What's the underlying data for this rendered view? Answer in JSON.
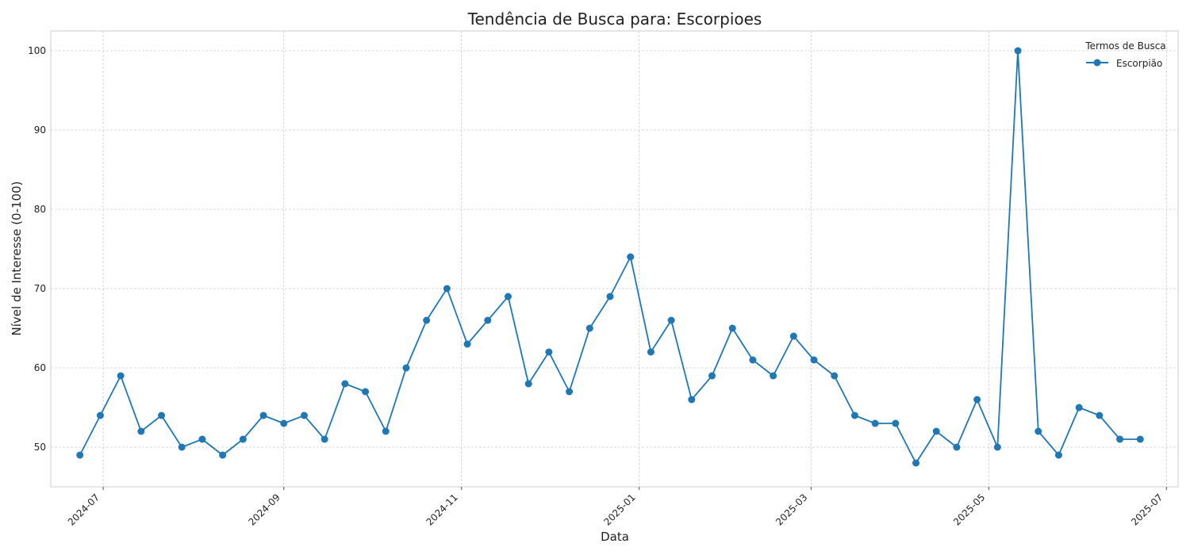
{
  "chart_data": {
    "type": "line",
    "title": "Tendência de Busca para: Escorpioes",
    "xlabel": "Data",
    "ylabel": "Nível de Interesse (0-100)",
    "x_ticks": [
      "2024-07",
      "2024-09",
      "2024-11",
      "2025-01",
      "2025-03",
      "2025-05",
      "2025-07"
    ],
    "y_ticks": [
      50,
      60,
      70,
      80,
      90,
      100
    ],
    "ylim": [
      45,
      102.5
    ],
    "xlim": [
      "2024-06-13",
      "2025-07-05"
    ],
    "grid": true,
    "legend": {
      "title": "Termos de Busca",
      "position": "top-right"
    },
    "series": [
      {
        "name": "Escorpião",
        "color": "#1f77b4",
        "x": [
          "2024-06-23",
          "2024-06-30",
          "2024-07-07",
          "2024-07-14",
          "2024-07-21",
          "2024-07-28",
          "2024-08-04",
          "2024-08-11",
          "2024-08-18",
          "2024-08-25",
          "2024-09-01",
          "2024-09-08",
          "2024-09-15",
          "2024-09-22",
          "2024-09-29",
          "2024-10-06",
          "2024-10-13",
          "2024-10-20",
          "2024-10-27",
          "2024-11-03",
          "2024-11-10",
          "2024-11-17",
          "2024-11-24",
          "2024-12-01",
          "2024-12-08",
          "2024-12-15",
          "2024-12-22",
          "2024-12-29",
          "2025-01-05",
          "2025-01-12",
          "2025-01-19",
          "2025-01-26",
          "2025-02-02",
          "2025-02-09",
          "2025-02-16",
          "2025-02-23",
          "2025-03-02",
          "2025-03-09",
          "2025-03-16",
          "2025-03-23",
          "2025-03-30",
          "2025-04-06",
          "2025-04-13",
          "2025-04-20",
          "2025-04-27",
          "2025-05-04",
          "2025-05-11",
          "2025-05-18",
          "2025-05-25",
          "2025-06-01",
          "2025-06-08",
          "2025-06-15",
          "2025-06-22"
        ],
        "values": [
          49,
          54,
          59,
          52,
          54,
          50,
          51,
          49,
          51,
          54,
          53,
          54,
          51,
          58,
          57,
          52,
          60,
          66,
          70,
          63,
          66,
          69,
          58,
          62,
          57,
          65,
          69,
          74,
          62,
          66,
          56,
          59,
          65,
          61,
          59,
          64,
          61,
          59,
          54,
          53,
          53,
          48,
          52,
          50,
          56,
          50,
          100,
          52,
          49,
          55,
          54,
          51,
          51
        ]
      }
    ]
  }
}
